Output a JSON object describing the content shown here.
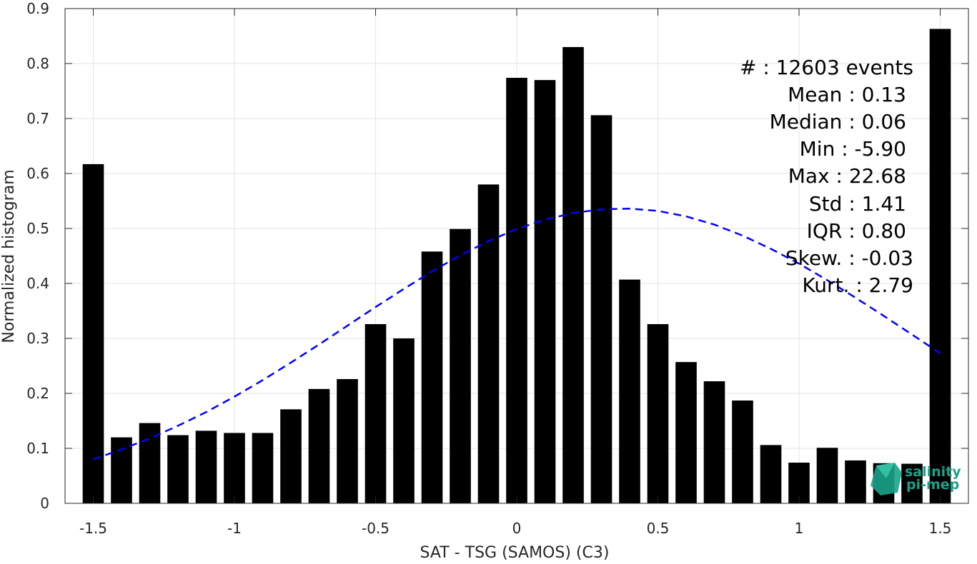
{
  "chart_data": {
    "type": "bar",
    "xlabel": "SAT - TSG (SAMOS) (C3)",
    "ylabel": "Normalized histogram",
    "xlim": [
      -1.6,
      1.6
    ],
    "ylim": [
      0,
      0.9
    ],
    "grid": true,
    "x_ticks": [
      -1.5,
      -1,
      -0.5,
      0,
      0.5,
      1,
      1.5
    ],
    "x_tick_labels": [
      "-1.5",
      "-1",
      "-0.5",
      "0",
      "0.5",
      "1",
      "1.5"
    ],
    "y_ticks": [
      0,
      0.1,
      0.2,
      0.3,
      0.4,
      0.5,
      0.6,
      0.7,
      0.8,
      0.9
    ],
    "y_tick_labels": [
      "0",
      "0.1",
      "0.2",
      "0.3",
      "0.4",
      "0.5",
      "0.6",
      "0.7",
      "0.8",
      "0.9"
    ],
    "bar_color": "#000000",
    "bar_width": 0.075,
    "bins": [
      -1.5,
      -1.4,
      -1.3,
      -1.2,
      -1.1,
      -1.0,
      -0.9,
      -0.8,
      -0.7,
      -0.6,
      -0.5,
      -0.4,
      -0.3,
      -0.2,
      -0.1,
      0.0,
      0.1,
      0.2,
      0.3,
      0.4,
      0.5,
      0.6,
      0.7,
      0.8,
      0.9,
      1.0,
      1.1,
      1.2,
      1.3,
      1.4,
      1.5
    ],
    "values": [
      0.617,
      0.12,
      0.146,
      0.124,
      0.132,
      0.128,
      0.128,
      0.171,
      0.208,
      0.226,
      0.326,
      0.3,
      0.458,
      0.499,
      0.58,
      0.774,
      0.77,
      0.83,
      0.706,
      0.407,
      0.326,
      0.257,
      0.222,
      0.187,
      0.106,
      0.074,
      0.101,
      0.078,
      0.073,
      0.072,
      0.863
    ],
    "fit_curve": {
      "style": "dashed",
      "color": "#0000ff",
      "points": [
        [
          -1.5,
          0.08
        ],
        [
          -1.4,
          0.098
        ],
        [
          -1.3,
          0.118
        ],
        [
          -1.2,
          0.141
        ],
        [
          -1.1,
          0.166
        ],
        [
          -1.0,
          0.194
        ],
        [
          -0.9,
          0.224
        ],
        [
          -0.8,
          0.256
        ],
        [
          -0.7,
          0.289
        ],
        [
          -0.6,
          0.323
        ],
        [
          -0.5,
          0.357
        ],
        [
          -0.4,
          0.39
        ],
        [
          -0.3,
          0.422
        ],
        [
          -0.2,
          0.451
        ],
        [
          -0.1,
          0.477
        ],
        [
          0.0,
          0.499
        ],
        [
          0.1,
          0.516
        ],
        [
          0.2,
          0.528
        ],
        [
          0.3,
          0.535
        ],
        [
          0.4,
          0.536
        ],
        [
          0.5,
          0.532
        ],
        [
          0.6,
          0.522
        ],
        [
          0.7,
          0.507
        ],
        [
          0.8,
          0.487
        ],
        [
          0.9,
          0.463
        ],
        [
          1.0,
          0.436
        ],
        [
          1.1,
          0.406
        ],
        [
          1.2,
          0.374
        ],
        [
          1.3,
          0.341
        ],
        [
          1.4,
          0.307
        ],
        [
          1.5,
          0.273
        ]
      ]
    },
    "stats": [
      "#  : 12603 events",
      "Mean : 0.13",
      "Median : 0.06",
      "Min : -5.90",
      "Max : 22.68",
      "Std : 1.41",
      "IQR : 0.80",
      "Skew. : -0.03",
      "Kurt. : 2.79"
    ],
    "logo": {
      "line1": "salinity",
      "line2": "pi-mep",
      "color": "#1aa38a"
    }
  }
}
